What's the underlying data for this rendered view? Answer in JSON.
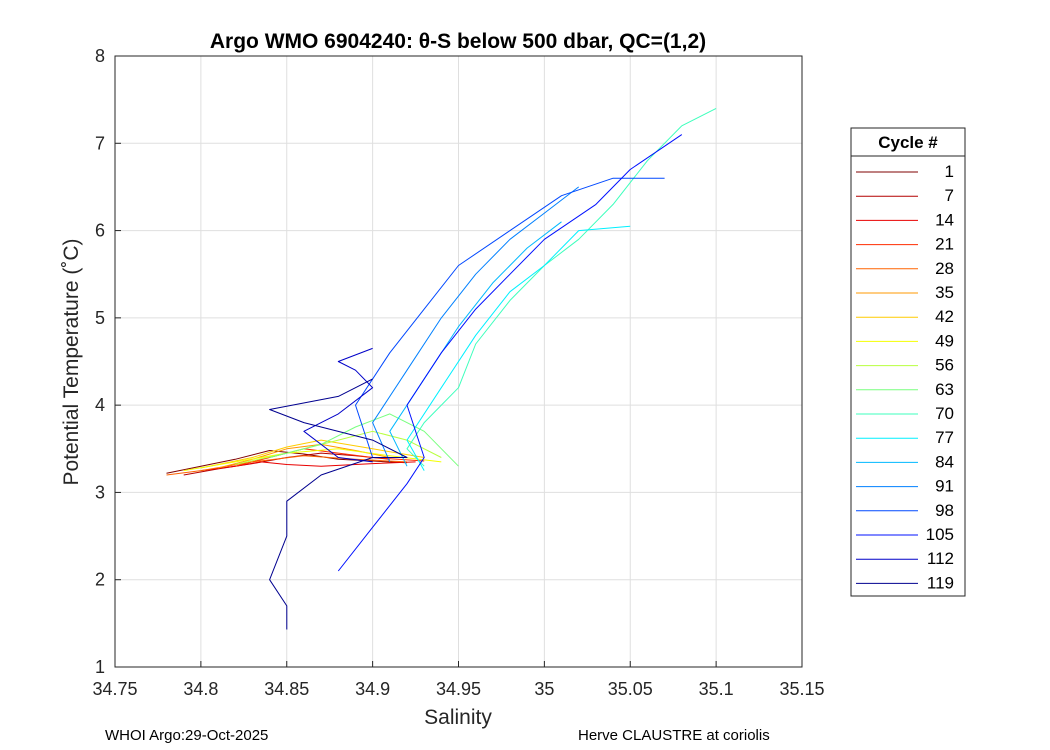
{
  "chart_data": {
    "type": "line",
    "title": "Argo WMO 6904240: θ-S below 500 dbar,  QC=(1,2)",
    "xlabel": "Salinity",
    "ylabel": "Potential Temperature (˚C)",
    "xlim": [
      34.75,
      35.15
    ],
    "ylim": [
      1,
      8
    ],
    "xticks": [
      "34.75",
      "34.8",
      "34.85",
      "34.9",
      "34.95",
      "35",
      "35.05",
      "35.1",
      "35.15"
    ],
    "yticks": [
      "1",
      "2",
      "3",
      "4",
      "5",
      "6",
      "7",
      "8"
    ],
    "grid": true,
    "legend": {
      "title": "Cycle #",
      "placement": "right-outside",
      "entries": [
        "1",
        "7",
        "14",
        "21",
        "28",
        "35",
        "42",
        "49",
        "56",
        "63",
        "70",
        "77",
        "84",
        "91",
        "98",
        "105",
        "112",
        "119"
      ],
      "colors": [
        "#7f0000",
        "#b40000",
        "#e80000",
        "#ff2c00",
        "#ff6300",
        "#ff9800",
        "#ffcc00",
        "#f4ff00",
        "#b8ff3f",
        "#78ff7e",
        "#3cffbc",
        "#00f0ff",
        "#00b8ff",
        "#0080ff",
        "#0048ff",
        "#0010ff",
        "#0000c8",
        "#00008f"
      ]
    },
    "series": [
      {
        "values": [
          [
            34.78,
            3.22
          ],
          [
            34.8,
            3.3
          ],
          [
            34.82,
            3.38
          ],
          [
            34.84,
            3.48
          ],
          [
            34.86,
            3.44
          ],
          [
            34.88,
            3.38
          ],
          [
            34.9,
            3.36
          ],
          [
            34.92,
            3.34
          ]
        ]
      },
      {
        "values": [
          [
            34.79,
            3.2
          ],
          [
            34.81,
            3.27
          ],
          [
            34.83,
            3.33
          ],
          [
            34.85,
            3.4
          ],
          [
            34.87,
            3.45
          ],
          [
            34.89,
            3.42
          ],
          [
            34.91,
            3.38
          ]
        ]
      },
      {
        "values": [
          [
            34.8,
            3.25
          ],
          [
            34.82,
            3.3
          ],
          [
            34.835,
            3.35
          ],
          [
            34.85,
            3.32
          ],
          [
            34.87,
            3.3
          ],
          [
            34.9,
            3.33
          ],
          [
            34.925,
            3.35
          ]
        ]
      },
      {
        "values": [
          [
            34.82,
            3.3
          ],
          [
            34.84,
            3.4
          ],
          [
            34.86,
            3.5
          ],
          [
            34.88,
            3.45
          ],
          [
            34.9,
            3.4
          ],
          [
            34.93,
            3.36
          ]
        ]
      },
      {
        "values": [
          [
            34.78,
            3.2
          ],
          [
            34.8,
            3.25
          ],
          [
            34.83,
            3.35
          ],
          [
            34.86,
            3.42
          ],
          [
            34.89,
            3.38
          ],
          [
            34.92,
            3.35
          ]
        ]
      },
      {
        "values": [
          [
            34.81,
            3.28
          ],
          [
            34.83,
            3.38
          ],
          [
            34.85,
            3.5
          ],
          [
            34.87,
            3.55
          ],
          [
            34.89,
            3.48
          ],
          [
            34.91,
            3.4
          ]
        ]
      },
      {
        "values": [
          [
            34.8,
            3.28
          ],
          [
            34.83,
            3.4
          ],
          [
            34.85,
            3.52
          ],
          [
            34.87,
            3.6
          ],
          [
            34.9,
            3.5
          ],
          [
            34.93,
            3.4
          ]
        ]
      },
      {
        "values": [
          [
            34.79,
            3.25
          ],
          [
            34.82,
            3.35
          ],
          [
            34.85,
            3.45
          ],
          [
            34.88,
            3.5
          ],
          [
            34.91,
            3.42
          ],
          [
            34.94,
            3.35
          ]
        ]
      },
      {
        "values": [
          [
            34.82,
            3.32
          ],
          [
            34.85,
            3.45
          ],
          [
            34.88,
            3.6
          ],
          [
            34.9,
            3.7
          ],
          [
            34.92,
            3.6
          ],
          [
            34.94,
            3.4
          ]
        ]
      },
      {
        "values": [
          [
            34.84,
            3.4
          ],
          [
            34.87,
            3.55
          ],
          [
            34.89,
            3.75
          ],
          [
            34.91,
            3.9
          ],
          [
            34.93,
            3.7
          ],
          [
            34.95,
            3.3
          ]
        ]
      },
      {
        "values": [
          [
            34.93,
            3.3
          ],
          [
            34.92,
            3.5
          ],
          [
            34.93,
            3.8
          ],
          [
            34.95,
            4.2
          ],
          [
            34.96,
            4.7
          ],
          [
            34.98,
            5.2
          ],
          [
            35.0,
            5.6
          ],
          [
            35.02,
            5.9
          ],
          [
            35.04,
            6.3
          ],
          [
            35.06,
            6.8
          ],
          [
            35.08,
            7.2
          ],
          [
            35.1,
            7.4
          ]
        ]
      },
      {
        "values": [
          [
            34.93,
            3.25
          ],
          [
            34.92,
            3.6
          ],
          [
            34.94,
            4.2
          ],
          [
            34.96,
            4.8
          ],
          [
            34.98,
            5.3
          ],
          [
            35.0,
            5.6
          ],
          [
            35.02,
            6.0
          ],
          [
            35.05,
            6.05
          ]
        ]
      },
      {
        "values": [
          [
            34.92,
            3.3
          ],
          [
            34.91,
            3.7
          ],
          [
            34.93,
            4.3
          ],
          [
            34.95,
            4.9
          ],
          [
            34.97,
            5.4
          ],
          [
            34.99,
            5.8
          ],
          [
            35.01,
            6.1
          ]
        ]
      },
      {
        "values": [
          [
            34.91,
            3.35
          ],
          [
            34.9,
            3.8
          ],
          [
            34.92,
            4.4
          ],
          [
            34.94,
            5.0
          ],
          [
            34.96,
            5.5
          ],
          [
            34.98,
            5.9
          ],
          [
            35.0,
            6.2
          ],
          [
            35.02,
            6.5
          ]
        ]
      },
      {
        "values": [
          [
            34.9,
            3.4
          ],
          [
            34.89,
            4.0
          ],
          [
            34.91,
            4.6
          ],
          [
            34.93,
            5.1
          ],
          [
            34.95,
            5.6
          ],
          [
            34.98,
            6.0
          ],
          [
            35.01,
            6.4
          ],
          [
            35.04,
            6.6
          ],
          [
            35.07,
            6.6
          ]
        ]
      },
      {
        "values": [
          [
            34.88,
            2.1
          ],
          [
            34.9,
            2.6
          ],
          [
            34.92,
            3.1
          ],
          [
            34.93,
            3.4
          ],
          [
            34.92,
            4.0
          ],
          [
            34.94,
            4.6
          ],
          [
            34.96,
            5.1
          ],
          [
            34.98,
            5.5
          ],
          [
            35.0,
            5.9
          ],
          [
            35.03,
            6.3
          ],
          [
            35.05,
            6.7
          ],
          [
            35.08,
            7.1
          ]
        ]
      },
      {
        "values": [
          [
            34.9,
            3.35
          ],
          [
            34.88,
            3.4
          ],
          [
            34.86,
            3.7
          ],
          [
            34.88,
            3.9
          ],
          [
            34.9,
            4.2
          ],
          [
            34.89,
            4.4
          ],
          [
            34.88,
            4.5
          ],
          [
            34.9,
            4.65
          ]
        ]
      },
      {
        "values": [
          [
            34.85,
            1.43
          ],
          [
            34.85,
            1.7
          ],
          [
            34.84,
            2.0
          ],
          [
            34.85,
            2.5
          ],
          [
            34.85,
            2.9
          ],
          [
            34.87,
            3.2
          ],
          [
            34.9,
            3.4
          ],
          [
            34.92,
            3.4
          ],
          [
            34.9,
            3.6
          ],
          [
            34.86,
            3.8
          ],
          [
            34.84,
            3.95
          ],
          [
            34.88,
            4.1
          ],
          [
            34.9,
            4.3
          ]
        ]
      }
    ]
  },
  "footer": {
    "left": "WHOI Argo:29-Oct-2025",
    "right": "Herve CLAUSTRE at coriolis"
  }
}
